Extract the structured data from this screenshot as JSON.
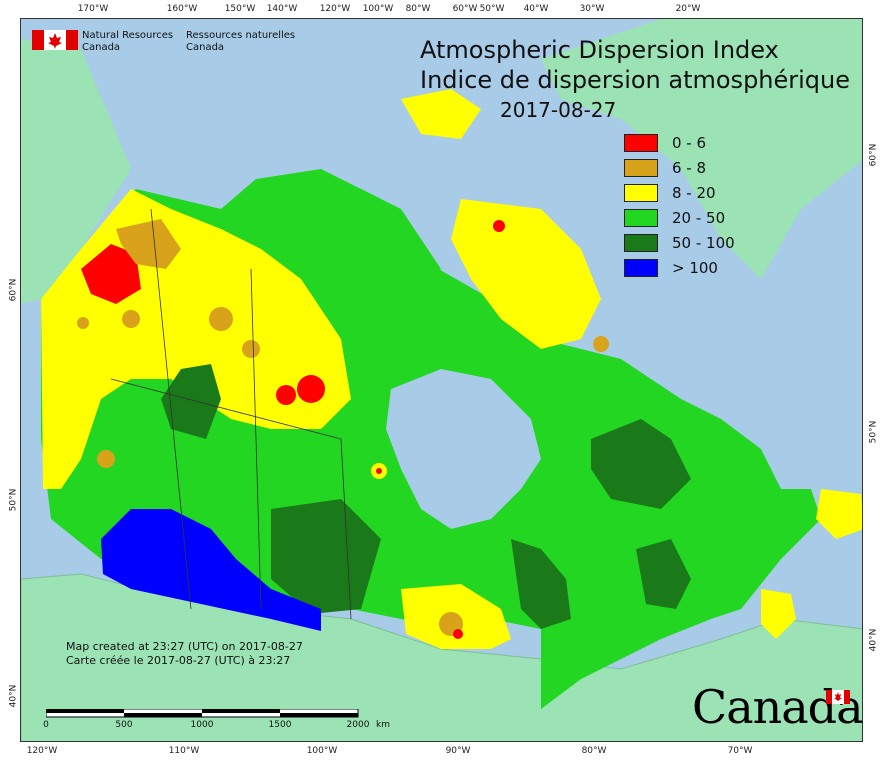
{
  "map": {
    "title_en": "Atmospheric Dispersion Index",
    "title_fr": "Indice de dispersion atmosphérique",
    "date": "2017-08-27",
    "agency_en_line1": "Natural Resources",
    "agency_en_line2": "Canada",
    "agency_fr_line1": "Ressources naturelles",
    "agency_fr_line2": "Canada",
    "created_en": "Map created at 23:27 (UTC) on 2017-08-27",
    "created_fr": "Carte créée le 2017-08-27 (UTC) à 23:27",
    "wordmark": "Canada",
    "colors": {
      "ocean": "#a8cbe8",
      "land_outside": "#9be3b4",
      "class_0_6": "#ff0000",
      "class_6_8": "#d9a21b",
      "class_8_20": "#ffff00",
      "class_20_50": "#22d622",
      "class_50_100": "#1a7a1a",
      "class_gt_100": "#0000ff"
    }
  },
  "legend": [
    {
      "label": "0 - 6",
      "color": "#ff0000"
    },
    {
      "label": "6 - 8",
      "color": "#d9a21b"
    },
    {
      "label": "8 - 20",
      "color": "#ffff00"
    },
    {
      "label": "20 - 50",
      "color": "#22d622"
    },
    {
      "label": "50 - 100",
      "color": "#1a7a1a"
    },
    {
      "label": "> 100",
      "color": "#0000ff"
    }
  ],
  "top_ticks": [
    "170°W",
    "160°W",
    "150°W",
    "140°W",
    "120°W",
    "100°W",
    "80°W",
    "60°W",
    "50°W",
    "40°W",
    "30°W",
    "20°W"
  ],
  "bottom_ticks": [
    "120°W",
    "110°W",
    "100°W",
    "90°W",
    "80°W",
    "70°W"
  ],
  "left_ticks": [
    "60°N",
    "50°N",
    "40°N"
  ],
  "right_ticks": [
    "60°N",
    "50°N",
    "40°N"
  ],
  "scale": {
    "labels": [
      "0",
      "500",
      "1000",
      "1500",
      "2000"
    ],
    "unit": "km"
  }
}
